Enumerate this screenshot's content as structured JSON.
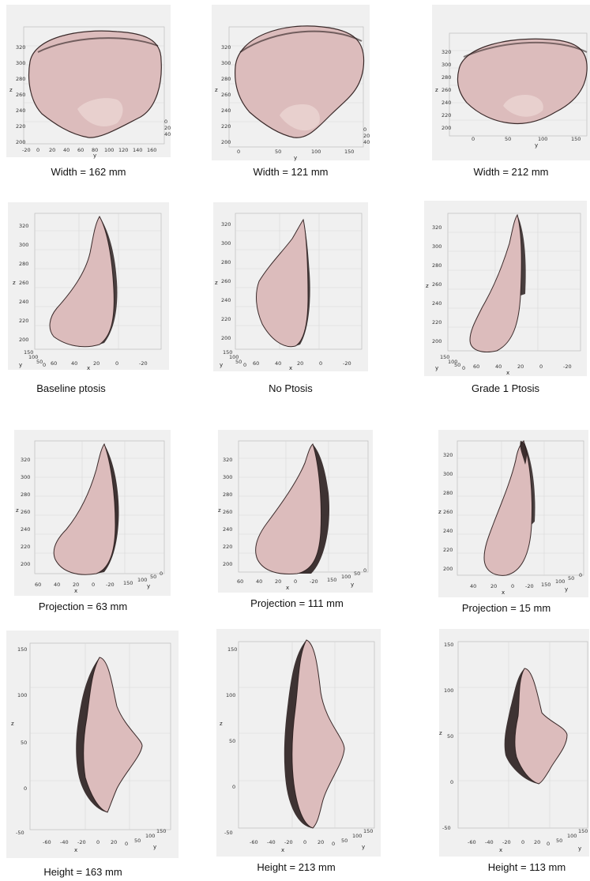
{
  "colors": {
    "surface": "#dcbcbc",
    "surface_light": "#ecd8d6",
    "shadow": "#2a1e1e",
    "panel_bg": "#f0f0f0"
  },
  "captions": {
    "r1c1": "Width = 162 mm",
    "r1c2": "Width = 121 mm",
    "r1c3": "Width = 212 mm",
    "r2c1": "Baseline ptosis",
    "r2c2": "No Ptosis",
    "r2c3": "Grade 1 Ptosis",
    "r3c1": "Projection = 63 mm",
    "r3c2": "Projection = 111 mm",
    "r3c3": "Projection = 15 mm",
    "r4c1": "Height = 163 mm",
    "r4c2": "Height = 213 mm",
    "r4c3": "Height = 113 mm"
  },
  "axes": {
    "row1": {
      "z_label": "z",
      "y_label": "y",
      "z_ticks": [
        "320",
        "300",
        "280",
        "260",
        "240",
        "220",
        "200"
      ],
      "p1_y_ticks": [
        "-20",
        "0",
        "20",
        "40",
        "60",
        "80",
        "100",
        "120",
        "140",
        "160"
      ],
      "p2_y_ticks": [
        "0",
        "50",
        "100",
        "150"
      ],
      "p3_y_ticks": [
        "0",
        "50",
        "100",
        "150"
      ],
      "x_side_ticks": [
        "0",
        "20",
        "40"
      ]
    },
    "row2": {
      "z_label": "z",
      "x_label": "x",
      "y_label": "y",
      "z_ticks": [
        "320",
        "300",
        "280",
        "260",
        "240",
        "220",
        "200"
      ],
      "y_ticks": [
        "150",
        "100",
        "50",
        "0"
      ],
      "x_ticks": [
        "60",
        "40",
        "20",
        "0",
        "-20"
      ]
    },
    "row3": {
      "z_label": "z",
      "x_label": "x",
      "y_label": "y",
      "z_ticks": [
        "320",
        "300",
        "280",
        "260",
        "240",
        "220",
        "200"
      ],
      "p1_x_ticks": [
        "60",
        "40",
        "20",
        "0",
        "-20"
      ],
      "p2_x_ticks": [
        "60",
        "40",
        "20",
        "0",
        "-20"
      ],
      "p3_x_ticks": [
        "40",
        "20",
        "0",
        "-20"
      ],
      "y_ticks": [
        "150",
        "100",
        "50",
        "0"
      ]
    },
    "row4": {
      "z_label": "z",
      "x_label": "x",
      "y_label": "y",
      "z_ticks": [
        "150",
        "100",
        "50",
        "0",
        "-50"
      ],
      "x_ticks": [
        "-60",
        "-40",
        "-20",
        "0",
        "20"
      ],
      "y_ticks": [
        "150",
        "100",
        "50",
        "0"
      ]
    }
  }
}
